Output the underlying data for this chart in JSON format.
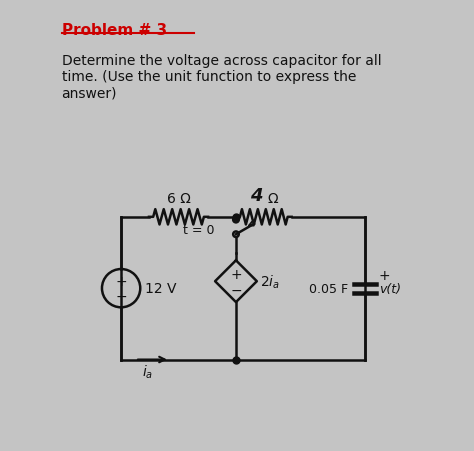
{
  "bg_color": "#c4c4c4",
  "title": "Problem # 3",
  "title_color": "#cc0000",
  "body_text": "Determine the voltage across capacitor for all\ntime. (Use the unit function to express the\nanswer)",
  "body_color": "#111111",
  "circuit_color": "#111111",
  "resistor1_label": "6 Ω",
  "voltage_label": "12 V",
  "capacitor_label": "0.05 F",
  "switch_label": "t = 0",
  "vt_label": "v(t)",
  "omega": "Ω"
}
